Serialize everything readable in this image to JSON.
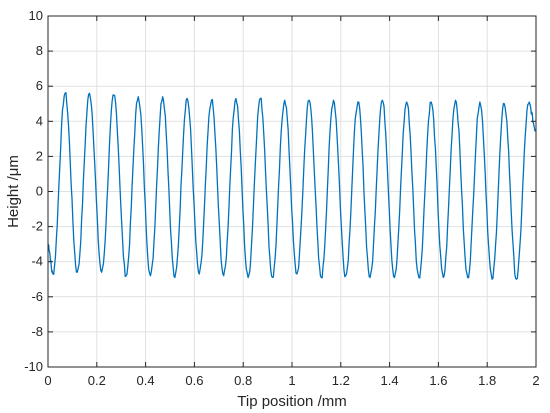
{
  "chart_data": {
    "type": "line",
    "title": "",
    "xlabel": "Tip position /mm",
    "ylabel": "Height /μm",
    "xlim": [
      0,
      2
    ],
    "ylim": [
      -10,
      10
    ],
    "xticks": [
      0,
      0.2,
      0.4,
      0.6,
      0.8,
      1,
      1.2,
      1.4,
      1.6,
      1.8,
      2
    ],
    "xtick_labels": [
      "0",
      "0.2",
      "0.4",
      "0.6",
      "0.8",
      "1",
      "1.2",
      "1.4",
      "1.6",
      "1.8",
      "2"
    ],
    "yticks": [
      -10,
      -8,
      -6,
      -4,
      -2,
      0,
      2,
      4,
      6,
      8,
      10
    ],
    "ytick_labels": [
      "-10",
      "-8",
      "-6",
      "-4",
      "-2",
      "0",
      "2",
      "4",
      "6",
      "8",
      "10"
    ],
    "grid": true,
    "legend": "none",
    "color": "#0072BD",
    "series": [
      {
        "peaks": [
          {
            "x": 0.07,
            "y": 5.6
          },
          {
            "x": 0.17,
            "y": 5.6
          },
          {
            "x": 0.27,
            "y": 5.5
          },
          {
            "x": 0.37,
            "y": 5.4
          },
          {
            "x": 0.47,
            "y": 5.4
          },
          {
            "x": 0.57,
            "y": 5.3
          },
          {
            "x": 0.67,
            "y": 5.2
          },
          {
            "x": 0.77,
            "y": 5.3
          },
          {
            "x": 0.87,
            "y": 5.3
          },
          {
            "x": 0.97,
            "y": 5.2
          },
          {
            "x": 1.07,
            "y": 5.2
          },
          {
            "x": 1.17,
            "y": 5.2
          },
          {
            "x": 1.27,
            "y": 5.1
          },
          {
            "x": 1.37,
            "y": 5.2
          },
          {
            "x": 1.47,
            "y": 5.1
          },
          {
            "x": 1.57,
            "y": 5.1
          },
          {
            "x": 1.67,
            "y": 5.2
          },
          {
            "x": 1.77,
            "y": 5.1
          },
          {
            "x": 1.87,
            "y": 5.0
          },
          {
            "x": 1.97,
            "y": 5.0
          }
        ],
        "troughs": [
          {
            "x": 0.02,
            "y": -4.7
          },
          {
            "x": 0.12,
            "y": -4.6
          },
          {
            "x": 0.22,
            "y": -4.6
          },
          {
            "x": 0.32,
            "y": -4.8
          },
          {
            "x": 0.42,
            "y": -4.8
          },
          {
            "x": 0.52,
            "y": -4.9
          },
          {
            "x": 0.62,
            "y": -4.7
          },
          {
            "x": 0.72,
            "y": -4.8
          },
          {
            "x": 0.82,
            "y": -4.9
          },
          {
            "x": 0.92,
            "y": -4.9
          },
          {
            "x": 1.02,
            "y": -4.7
          },
          {
            "x": 1.12,
            "y": -4.9
          },
          {
            "x": 1.22,
            "y": -4.8
          },
          {
            "x": 1.32,
            "y": -4.9
          },
          {
            "x": 1.42,
            "y": -4.9
          },
          {
            "x": 1.52,
            "y": -4.9
          },
          {
            "x": 1.62,
            "y": -4.9
          },
          {
            "x": 1.72,
            "y": -4.9
          },
          {
            "x": 1.82,
            "y": -5.0
          },
          {
            "x": 1.92,
            "y": -5.0
          }
        ],
        "start": {
          "x": 0,
          "y": -3.0
        },
        "end": {
          "x": 2,
          "y": 3.5
        }
      }
    ]
  }
}
